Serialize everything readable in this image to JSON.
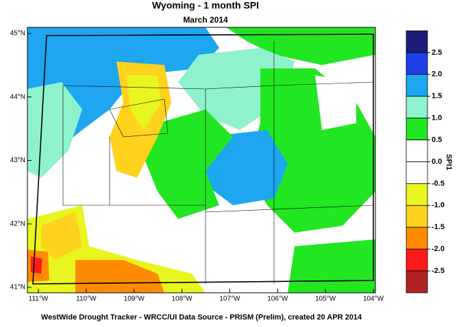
{
  "title": "Wyoming - 1 month SPI",
  "subtitle": "March 2014",
  "footer": "WestWide Drought Tracker - WRCC/UI  Data Source - PRISM (Prelim), created 20 APR 2014",
  "lat_ticks": [
    {
      "value": 45,
      "label": "45°N"
    },
    {
      "value": 44,
      "label": "44°N"
    },
    {
      "value": 43,
      "label": "43°N"
    },
    {
      "value": 42,
      "label": "42°N"
    },
    {
      "value": 41,
      "label": "41°N"
    }
  ],
  "lon_ticks": [
    {
      "value": -111,
      "label": "111°W"
    },
    {
      "value": -110,
      "label": "110°W"
    },
    {
      "value": -109,
      "label": "109°W"
    },
    {
      "value": -108,
      "label": "108°W"
    },
    {
      "value": -107,
      "label": "107°W"
    },
    {
      "value": -106,
      "label": "106°W"
    },
    {
      "value": -105,
      "label": "105°W"
    },
    {
      "value": -104,
      "label": "104°W"
    }
  ],
  "colorbar": {
    "title": "SPI1",
    "levels": [
      2.5,
      {
        "value": 2,
        "label": "2.0"
      },
      1.5,
      {
        "value": 1,
        "label": "1.0"
      },
      0.5,
      {
        "value": 0,
        "label": "0.0"
      },
      -0.5,
      {
        "value": -1,
        "label": "-1.0"
      },
      -1.5,
      {
        "value": -2,
        "label": "-2.0"
      },
      -2.5
    ],
    "colors": [
      "#1c1c78",
      "#1f3fe6",
      "#1ea6f0",
      "#8ef2cc",
      "#22e622",
      "#ffffff",
      "#ffffff",
      "#e8f51e",
      "#ffd21e",
      "#ff8c00",
      "#ff1a1a",
      "#b22222"
    ]
  }
}
